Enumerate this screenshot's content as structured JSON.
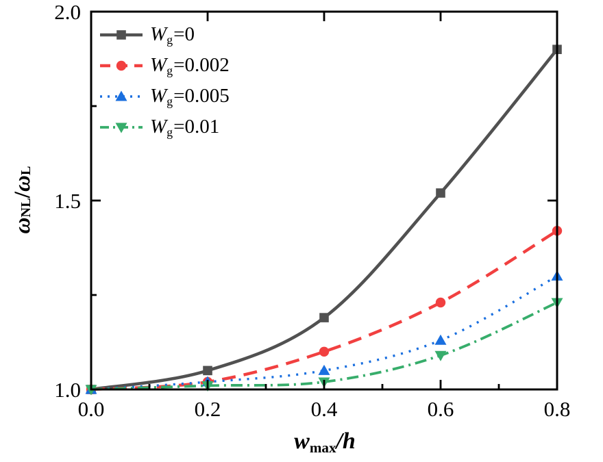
{
  "chart_data": {
    "type": "line",
    "title": "",
    "xlabel_parts": {
      "symbol": "w",
      "sub": "max",
      "rest": "/h"
    },
    "ylabel_parts": {
      "sym1": "ω",
      "sub1": "NL",
      "slash": "/",
      "sym2": "ω",
      "sub2": "L"
    },
    "xlim": [
      0.0,
      0.8
    ],
    "ylim": [
      1.0,
      2.0
    ],
    "x": [
      0.0,
      0.2,
      0.4,
      0.6,
      0.8
    ],
    "x_major_ticks": [
      0.0,
      0.2,
      0.4,
      0.6,
      0.8
    ],
    "x_minor_ticks": [
      0.1,
      0.3,
      0.5,
      0.7
    ],
    "y_major_ticks": [
      1.0,
      1.5,
      2.0
    ],
    "y_minor_ticks": [
      1.25,
      1.75
    ],
    "x_tick_labels": [
      "0.0",
      "0.2",
      "0.4",
      "0.6",
      "0.8"
    ],
    "y_tick_labels": [
      "1.0",
      "1.5",
      "2.0"
    ],
    "grid": false,
    "legend_position": "top-left",
    "background_color": "#ffffff",
    "axis_color": "#000000",
    "series": [
      {
        "name": "Wg=0",
        "label_symbol": "W",
        "label_sub": "g",
        "label_value": "=0",
        "values": [
          1.0,
          1.05,
          1.19,
          1.52,
          1.9
        ],
        "color": "#515151",
        "marker": "square",
        "line_style": "solid"
      },
      {
        "name": "Wg=0.002",
        "label_symbol": "W",
        "label_sub": "g",
        "label_value": "=0.002",
        "values": [
          1.0,
          1.02,
          1.1,
          1.23,
          1.42
        ],
        "color": "#F14040",
        "marker": "circle",
        "line_style": "dashed"
      },
      {
        "name": "Wg=0.005",
        "label_symbol": "W",
        "label_sub": "g",
        "label_value": "=0.005",
        "values": [
          1.0,
          1.02,
          1.05,
          1.13,
          1.3
        ],
        "color": "#1A6FDF",
        "marker": "triangle-up",
        "line_style": "dotted"
      },
      {
        "name": "Wg=0.01",
        "label_symbol": "W",
        "label_sub": "g",
        "label_value": "=0.01",
        "values": [
          1.0,
          1.01,
          1.02,
          1.09,
          1.23
        ],
        "color": "#37AD6B",
        "marker": "triangle-down",
        "line_style": "dashdot"
      }
    ]
  }
}
